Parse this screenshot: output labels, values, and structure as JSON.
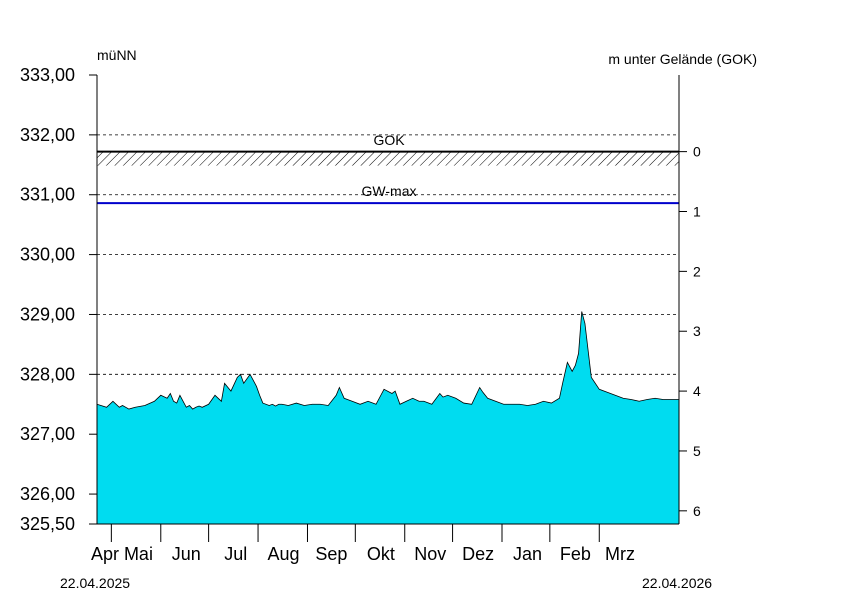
{
  "chart_data": {
    "type": "area",
    "left_unit": "müNN",
    "right_unit": "m unter Gelände (GOK)",
    "left_ticks": [
      "333,00",
      "332,00",
      "331,00",
      "330,00",
      "329,00",
      "328,00",
      "327,00",
      "326,00",
      "325,50"
    ],
    "left_tick_values": [
      333,
      332,
      331,
      330,
      329,
      328,
      327,
      326,
      325.5
    ],
    "right_ticks": [
      "0",
      "1",
      "2",
      "3",
      "4",
      "5",
      "6"
    ],
    "right_tick_values": [
      0,
      1,
      2,
      3,
      4,
      5,
      6
    ],
    "ylim": [
      325.5,
      333.0
    ],
    "gok_level": 331.72,
    "gw_max_level": 330.86,
    "month_labels": [
      "Apr",
      "Mai",
      "Jun",
      "Jul",
      "Aug",
      "Sep",
      "Okt",
      "Nov",
      "Dez",
      "Jan",
      "Feb",
      "Mrz"
    ],
    "month_label_days": [
      5,
      26,
      56,
      87,
      117,
      147,
      178,
      209,
      239,
      270,
      300,
      328
    ],
    "month_tick_days": [
      9,
      40,
      70,
      101,
      132,
      162,
      193,
      223,
      254,
      284,
      315
    ],
    "x_range_days": [
      0,
      365
    ],
    "date_start": "22.04.2025",
    "date_end": "22.04.2026",
    "annotations": [
      "GOK",
      "GW-max"
    ],
    "series": [
      {
        "x": [
          0,
          6,
          10,
          14,
          16,
          20,
          24,
          30,
          36,
          40,
          44,
          46,
          48,
          50,
          52,
          54,
          56,
          58,
          60,
          62,
          64,
          66,
          70,
          74,
          78,
          80,
          84,
          88,
          90,
          92,
          96,
          98,
          100,
          102,
          104,
          108,
          110,
          112,
          114,
          116,
          120,
          125,
          130,
          135,
          140,
          145,
          150,
          152,
          155,
          160,
          165,
          170,
          175,
          180,
          185,
          187,
          190,
          194,
          198,
          202,
          205,
          210,
          215,
          217,
          220,
          225,
          230,
          235,
          240,
          242,
          245,
          250,
          255,
          260,
          265,
          270,
          275,
          280,
          285,
          290,
          292,
          295,
          298,
          300,
          302,
          304,
          306,
          310,
          315,
          320,
          325,
          330,
          335,
          340,
          345,
          350,
          355,
          360,
          365
        ],
        "y": [
          327.5,
          327.45,
          327.55,
          327.45,
          327.48,
          327.42,
          327.45,
          327.48,
          327.55,
          327.65,
          327.6,
          327.68,
          327.55,
          327.52,
          327.65,
          327.55,
          327.45,
          327.48,
          327.42,
          327.45,
          327.47,
          327.45,
          327.5,
          327.65,
          327.55,
          327.85,
          327.72,
          327.95,
          328.0,
          327.85,
          328.0,
          327.9,
          327.8,
          327.65,
          327.52,
          327.48,
          327.5,
          327.47,
          327.5,
          327.5,
          327.48,
          327.52,
          327.48,
          327.5,
          327.5,
          327.48,
          327.65,
          327.78,
          327.6,
          327.55,
          327.5,
          327.55,
          327.5,
          327.75,
          327.68,
          327.72,
          327.5,
          327.55,
          327.6,
          327.55,
          327.55,
          327.5,
          327.68,
          327.62,
          327.65,
          327.6,
          327.52,
          327.5,
          327.78,
          327.7,
          327.6,
          327.55,
          327.5,
          327.5,
          327.5,
          327.48,
          327.5,
          327.55,
          327.52,
          327.6,
          327.85,
          328.2,
          328.05,
          328.15,
          328.35,
          329.05,
          328.85,
          327.95,
          327.75,
          327.7,
          327.65,
          327.6,
          327.58,
          327.55,
          327.58,
          327.6,
          327.58,
          327.58,
          327.58
        ]
      }
    ]
  }
}
